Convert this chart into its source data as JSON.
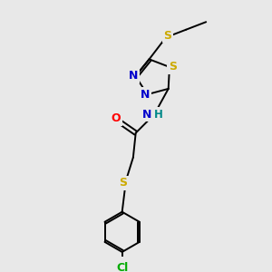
{
  "bg_color": "#e8e8e8",
  "bond_color": "#000000",
  "atom_colors": {
    "N": "#0000cc",
    "S": "#ccaa00",
    "O": "#ff0000",
    "Cl": "#00aa00",
    "C": "#000000",
    "H": "#008888"
  },
  "font_size": 8.5,
  "lw": 1.4,
  "fig_w": 3.0,
  "fig_h": 3.0,
  "dpi": 100,
  "xlim": [
    0,
    10
  ],
  "ylim": [
    0,
    10
  ]
}
